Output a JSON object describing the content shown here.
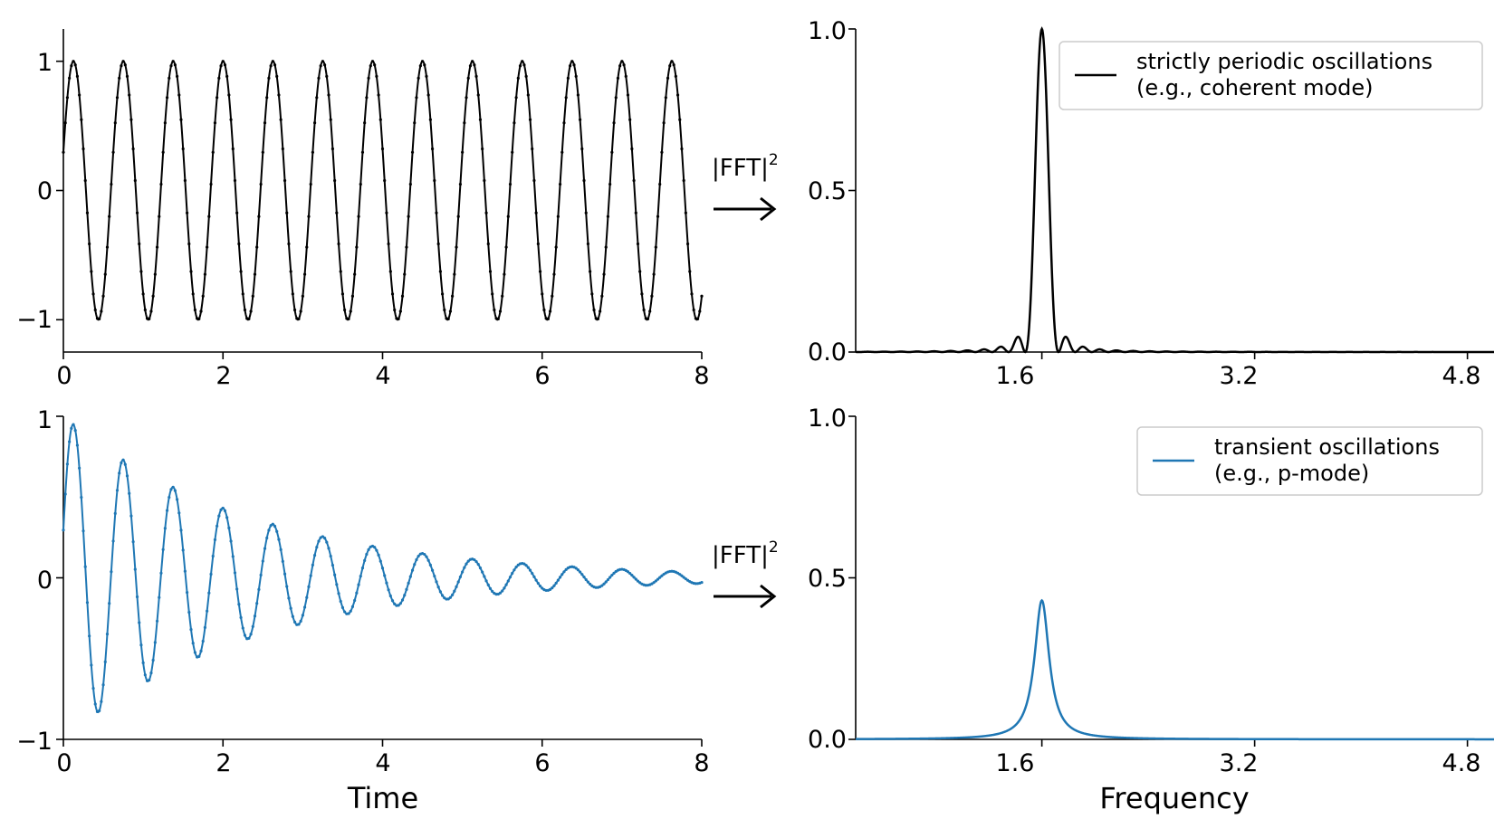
{
  "chart_data": [
    {
      "type": "line",
      "panel": "top-left",
      "xlabel": "",
      "ylabel": "",
      "xlim": [
        0,
        8
      ],
      "ylim": [
        -1.25,
        1.25
      ],
      "xticks": [
        "0",
        "2",
        "4",
        "6",
        "8"
      ],
      "yticks": [
        "1",
        "0",
        "−1"
      ],
      "series": [
        {
          "color": "#000000",
          "markers": "small dots",
          "function": "sin(2*pi*f*t + phase)",
          "f": 1.6,
          "phase": 0.3,
          "amplitude": 1.0,
          "damping": 0.0,
          "t_range": [
            0,
            8
          ]
        }
      ]
    },
    {
      "type": "line",
      "panel": "top-right",
      "xlabel": "",
      "ylabel": "",
      "xlim": [
        0.2,
        5.0
      ],
      "ylim": [
        0,
        1.0
      ],
      "xticks": [
        "1.6",
        "3.2",
        "4.8"
      ],
      "yticks": [
        "0.0",
        "0.5",
        "1.0"
      ],
      "legend": {
        "placement": "top-right",
        "entries": [
          "strictly periodic oscillations",
          "(e.g., coherent mode)"
        ]
      },
      "series": [
        {
          "color": "#000000",
          "peak_frequency": 1.6,
          "peak_value": 1.0,
          "shape": "sinc-squared",
          "points": [
            [
              0.2,
              0.0
            ],
            [
              1.0,
              0.002
            ],
            [
              1.3,
              0.006
            ],
            [
              1.45,
              0.05
            ],
            [
              1.5,
              0.0
            ],
            [
              1.6,
              1.0
            ],
            [
              1.7,
              0.0
            ],
            [
              1.75,
              0.045
            ],
            [
              1.9,
              0.01
            ],
            [
              2.2,
              0.002
            ],
            [
              5.0,
              0.0
            ]
          ]
        }
      ]
    },
    {
      "type": "line",
      "panel": "bottom-left",
      "xlabel": "Time",
      "ylabel": "",
      "xlim": [
        0,
        8
      ],
      "ylim": [
        -1,
        1
      ],
      "xticks": [
        "0",
        "2",
        "4",
        "6",
        "8"
      ],
      "yticks": [
        "1",
        "0",
        "−1"
      ],
      "series": [
        {
          "color": "#1f77b4",
          "markers": "small dots",
          "function": "exp(-damping*t)*sin(2*pi*f*t + phase)",
          "f": 1.6,
          "phase": 0.3,
          "amplitude": 1.0,
          "damping": 0.42,
          "t_range": [
            0,
            8
          ]
        }
      ]
    },
    {
      "type": "line",
      "panel": "bottom-right",
      "xlabel": "Frequency",
      "ylabel": "",
      "xlim": [
        0.2,
        5.0
      ],
      "ylim": [
        0,
        1.0
      ],
      "xticks": [
        "1.6",
        "3.2",
        "4.8"
      ],
      "yticks": [
        "0.0",
        "0.5",
        "1.0"
      ],
      "legend": {
        "placement": "top-right",
        "entries": [
          "transient oscillations",
          "(e.g., p-mode)"
        ]
      },
      "series": [
        {
          "color": "#1f77b4",
          "peak_frequency": 1.6,
          "peak_value": 0.43,
          "half_width": 0.067,
          "shape": "lorentzian"
        }
      ]
    }
  ],
  "annotations": {
    "fft_label": "|FFT|",
    "fft_power": "2",
    "arrow": "→"
  },
  "legends": {
    "top": {
      "line1": "strictly periodic oscillations",
      "line2": "(e.g., coherent mode)"
    },
    "bottom": {
      "line1": "transient oscillations",
      "line2": "(e.g., p-mode)"
    }
  },
  "axis_titles": {
    "time": "Time",
    "frequency": "Frequency"
  },
  "colors": {
    "periodic": "#000000",
    "transient": "#1f77b4",
    "legend_border": "#cccccc"
  }
}
